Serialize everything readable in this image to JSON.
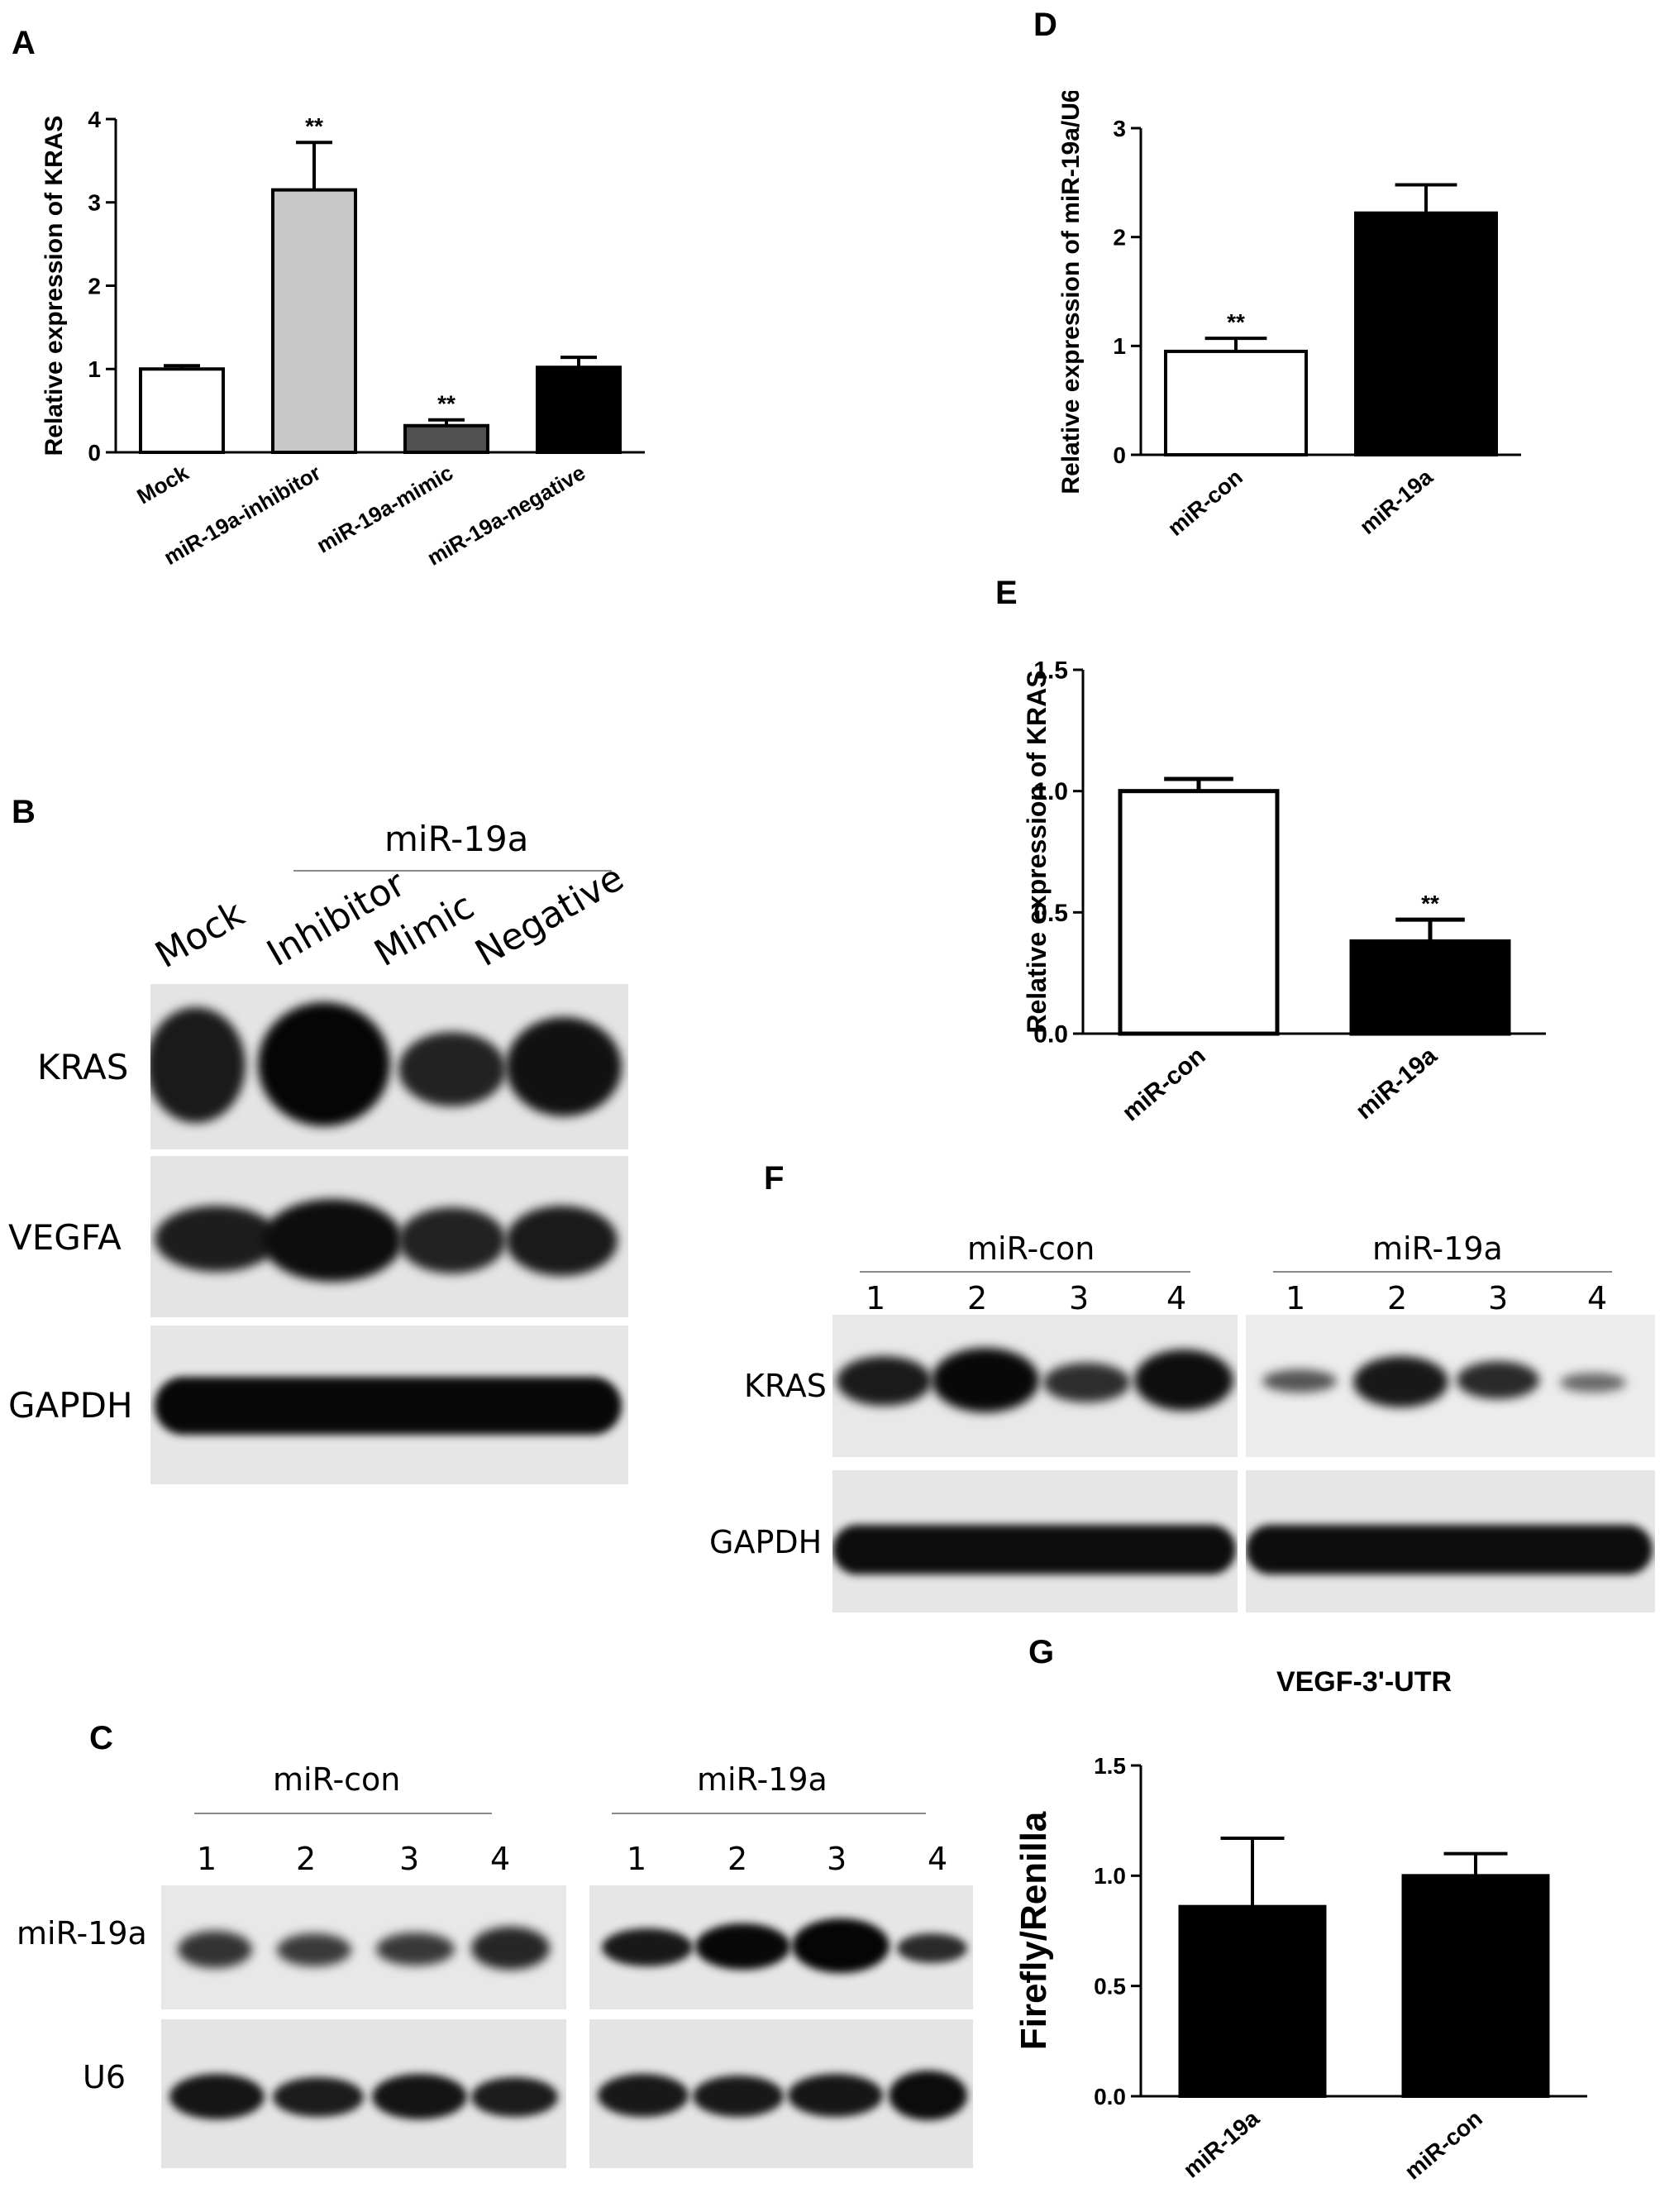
{
  "panels": {
    "a": {
      "letter": "A"
    },
    "b": {
      "letter": "B",
      "group_label": "miR-19a",
      "lanes": [
        "Mock",
        "Inhibitor",
        "Mimic",
        "Negative"
      ],
      "rows": [
        "KRAS",
        "VEGFA",
        "GAPDH"
      ]
    },
    "c": {
      "letter": "C",
      "group_left": "miR-con",
      "group_right": "miR-19a",
      "lanes": [
        "1",
        "2",
        "3",
        "4"
      ],
      "rows": [
        "miR-19a",
        "U6"
      ]
    },
    "d": {
      "letter": "D"
    },
    "e": {
      "letter": "E"
    },
    "f": {
      "letter": "F",
      "group_left": "miR-con",
      "group_right": "miR-19a",
      "lanes": [
        "1",
        "2",
        "3",
        "4"
      ],
      "rows": [
        "KRAS",
        "GAPDH"
      ]
    },
    "g": {
      "letter": "G"
    }
  },
  "chart_data": [
    {
      "id": "A",
      "type": "bar",
      "categories": [
        "Mock",
        "miR-19a-inhibitor",
        "miR-19a-mimic",
        "miR-19a-negative"
      ],
      "values": [
        1.0,
        3.15,
        0.32,
        1.02
      ],
      "errors": [
        0.04,
        0.57,
        0.07,
        0.12
      ],
      "annotations": [
        "",
        "**",
        "**",
        ""
      ],
      "bar_colors": [
        "#ffffff",
        "#c8c8c8",
        "#505050",
        "#000000"
      ],
      "title": "",
      "xlabel": "",
      "ylabel": "Relative expression of KRAS",
      "ylim": [
        0,
        4
      ],
      "yticks": [
        "0",
        "1",
        "2",
        "3",
        "4"
      ]
    },
    {
      "id": "D",
      "type": "bar",
      "categories": [
        "miR-con",
        "miR-19a"
      ],
      "values": [
        0.95,
        2.22
      ],
      "errors": [
        0.12,
        0.26
      ],
      "annotations": [
        "**",
        ""
      ],
      "bar_colors": [
        "#ffffff",
        "#000000"
      ],
      "title": "",
      "xlabel": "",
      "ylabel": "Relative expression of miR-19a/U6",
      "ylim": [
        0,
        3
      ],
      "yticks": [
        "0",
        "1",
        "2",
        "3"
      ]
    },
    {
      "id": "E",
      "type": "bar",
      "categories": [
        "miR-con",
        "miR-19a"
      ],
      "values": [
        1.0,
        0.38
      ],
      "errors": [
        0.05,
        0.09
      ],
      "annotations": [
        "",
        "**"
      ],
      "bar_colors": [
        "#ffffff",
        "#000000"
      ],
      "title": "",
      "xlabel": "",
      "ylabel": "Relative expression of KRAS",
      "ylim": [
        0,
        1.5
      ],
      "yticks": [
        "0.0",
        "0.5",
        "1.0",
        "1.5"
      ]
    },
    {
      "id": "G",
      "type": "bar",
      "categories": [
        "miR-19a",
        "miR-con"
      ],
      "values": [
        0.86,
        1.0
      ],
      "errors": [
        0.31,
        0.1
      ],
      "annotations": [
        "",
        ""
      ],
      "bar_colors": [
        "#000000",
        "#000000"
      ],
      "title": "VEGF-3'-UTR",
      "xlabel": "",
      "ylabel": "Firefly/Renilla",
      "ylim": [
        0,
        1.5
      ],
      "yticks": [
        "0.0",
        "0.5",
        "1.0",
        "1.5"
      ]
    }
  ],
  "colors": {
    "blot_background": "#e6e6e6",
    "band": "#111111"
  }
}
